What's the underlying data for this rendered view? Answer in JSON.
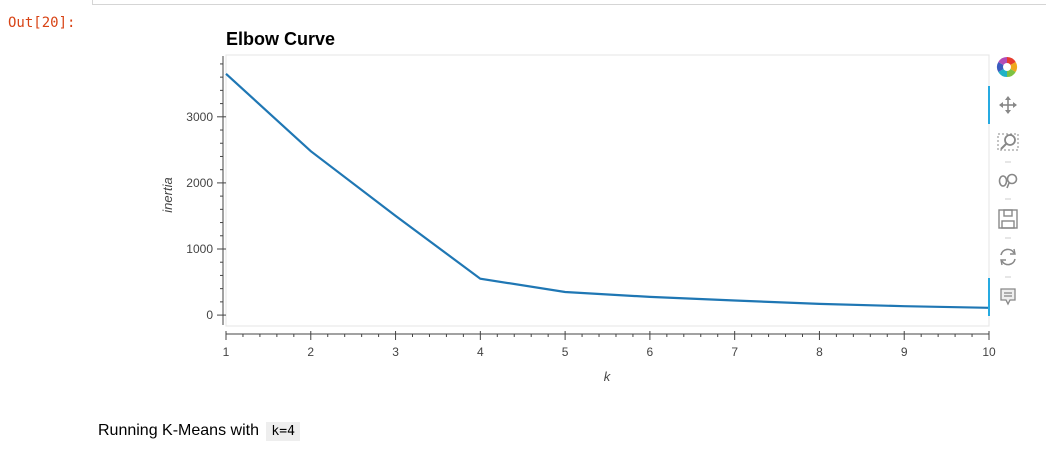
{
  "cell": {
    "out_prompt": "Out[20]:"
  },
  "toolbar": {
    "tools": [
      {
        "name": "bokeh-logo-icon"
      },
      {
        "name": "pan-icon"
      },
      {
        "name": "box-zoom-icon"
      },
      {
        "name": "wheel-zoom-icon"
      },
      {
        "name": "save-icon"
      },
      {
        "name": "reset-icon"
      },
      {
        "name": "hover-icon"
      }
    ],
    "accent": "#26aae1"
  },
  "chart_data": {
    "type": "line",
    "title": "Elbow Curve",
    "xlabel": "k",
    "ylabel": "inertia",
    "x": [
      1,
      2,
      3,
      4,
      5,
      6,
      7,
      8,
      9,
      10
    ],
    "series": [
      {
        "values": [
          3650,
          2480,
          1500,
          550,
          350,
          275,
          220,
          170,
          135,
          110
        ]
      }
    ],
    "xlim": [
      1,
      10
    ],
    "ylim": [
      -150,
      3920
    ],
    "xticks": [
      1,
      2,
      3,
      4,
      5,
      6,
      7,
      8,
      9,
      10
    ],
    "yticks": [
      0,
      1000,
      2000,
      3000
    ],
    "grid": false,
    "line_color": "#1f77b4"
  },
  "markdown": {
    "text": "Running K-Means with",
    "code": "k=4"
  }
}
